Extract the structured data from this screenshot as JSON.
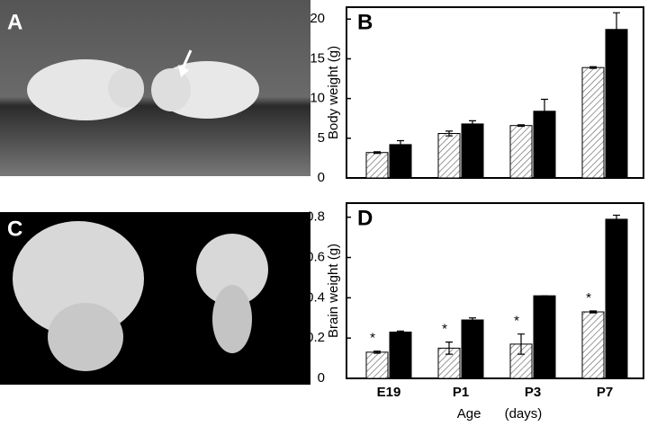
{
  "panel_labels": [
    "A",
    "C"
  ],
  "chart_data": [
    {
      "type": "bar",
      "title": "B",
      "ylabel": "Body weight (g)",
      "categories": [
        null,
        null,
        null,
        null
      ],
      "series": [
        {
          "color": "#ffffff",
          "hatch": true,
          "values": [
            3.2,
            5.6,
            6.6,
            13.9
          ],
          "errors": [
            0.1,
            0.3,
            0.1,
            0.1
          ]
        },
        {
          "color": "#000000",
          "hatch": false,
          "values": [
            4.2,
            6.8,
            8.4,
            18.7
          ],
          "errors": [
            0.5,
            0.4,
            1.5,
            2.1
          ]
        }
      ],
      "ylim": [
        0,
        21.5
      ],
      "yticks": [
        0,
        5,
        10,
        15,
        20
      ]
    },
    {
      "type": "bar",
      "title": "D",
      "ylabel": "Brain weight (g)",
      "xlabel": "Age (days)",
      "categories": [
        "E19",
        "P1",
        "P3",
        "P7"
      ],
      "series": [
        {
          "color": "#ffffff",
          "hatch": true,
          "values": [
            0.13,
            0.15,
            0.17,
            0.33
          ],
          "errors": [
            0.005,
            0.03,
            0.05,
            0.005
          ]
        },
        {
          "color": "#000000",
          "hatch": false,
          "values": [
            0.23,
            0.29,
            0.41,
            0.79
          ],
          "errors": [
            0.005,
            0.01,
            0,
            0.02
          ]
        }
      ],
      "annotations": [
        "*",
        "*",
        "*",
        "*"
      ],
      "ylim": [
        0,
        0.87
      ],
      "yticks": [
        0,
        0.2,
        0.4,
        0.6,
        0.8
      ]
    }
  ]
}
